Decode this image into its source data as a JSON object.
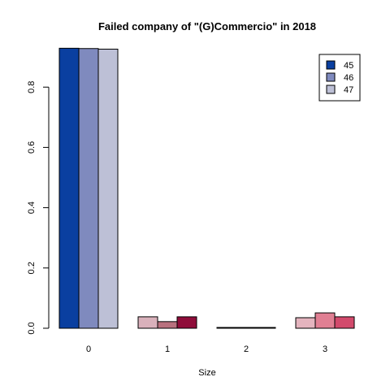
{
  "chart_data": {
    "type": "bar",
    "title": "Failed company of  \"(G)Commercio\" in 2018",
    "xlabel": "Size",
    "ylabel": "",
    "ylim": [
      0,
      0.93
    ],
    "yticks": [
      0.0,
      0.2,
      0.4,
      0.6,
      0.8
    ],
    "ytick_labels": [
      "0.0",
      "0.2",
      "0.4",
      "0.6",
      "0.8"
    ],
    "categories": [
      "0",
      "1",
      "2",
      "3"
    ],
    "legend_position": "top-right",
    "legend": [
      {
        "label": "45",
        "color": "#0a3fa0"
      },
      {
        "label": "46",
        "color": "#7f8abe"
      },
      {
        "label": "47",
        "color": "#bdc0d6"
      }
    ],
    "groups": [
      {
        "category": "0",
        "bars": [
          {
            "value": 0.929,
            "color": "#0a3fa0"
          },
          {
            "value": 0.928,
            "color": "#7f8abe"
          },
          {
            "value": 0.926,
            "color": "#bdc0d6"
          }
        ]
      },
      {
        "category": "1",
        "bars": [
          {
            "value": 0.038,
            "color": "#d9b1bb"
          },
          {
            "value": 0.022,
            "color": "#b8717e"
          },
          {
            "value": 0.038,
            "color": "#8f0d3a"
          }
        ]
      },
      {
        "category": "2",
        "bars": [
          {
            "value": 0.002,
            "color": "#000000"
          },
          {
            "value": 0.002,
            "color": "#000000"
          },
          {
            "value": 0.002,
            "color": "#000000"
          }
        ]
      },
      {
        "category": "3",
        "bars": [
          {
            "value": 0.035,
            "color": "#e4b4be"
          },
          {
            "value": 0.051,
            "color": "#e07f93"
          },
          {
            "value": 0.038,
            "color": "#d24a6c"
          }
        ]
      }
    ]
  }
}
